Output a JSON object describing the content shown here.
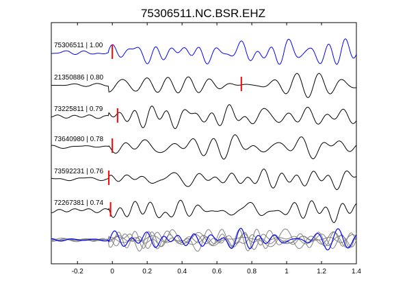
{
  "chart_data": {
    "type": "line",
    "title": "75306511.NC.BSR.EHZ",
    "xlabel": "",
    "ylabel": "",
    "xlim": [
      -0.35,
      1.4
    ],
    "xticks": [
      -0.2,
      0,
      0.2,
      0.4,
      0.6,
      0.8,
      1,
      1.2,
      1.4
    ],
    "xtick_labels": [
      "-0.2",
      "0",
      "0.2",
      "0.4",
      "0.6",
      "0.8",
      "1",
      "1.2",
      "1.4"
    ],
    "grid": false,
    "traces": [
      {
        "label": "75306511 | 1.00",
        "pick": 0.0,
        "color": "#0000ff",
        "seed": 1
      },
      {
        "label": "21350886 | 0.80",
        "pick": 0.74,
        "color": "#000000",
        "seed": 2
      },
      {
        "label": "73225811 | 0.79",
        "pick": 0.03,
        "color": "#000000",
        "seed": 3
      },
      {
        "label": "73640980 | 0.78",
        "pick": 0.0,
        "color": "#000000",
        "seed": 4
      },
      {
        "label": "73592231 | 0.76",
        "pick": -0.02,
        "color": "#000000",
        "seed": 5
      },
      {
        "label": "72267381 | 0.74",
        "pick": -0.01,
        "color": "#000000",
        "seed": 6
      }
    ],
    "stack": {
      "color_traces": "#808080",
      "color_reference": "#0000ff"
    },
    "pick_color": "#ff0000"
  }
}
